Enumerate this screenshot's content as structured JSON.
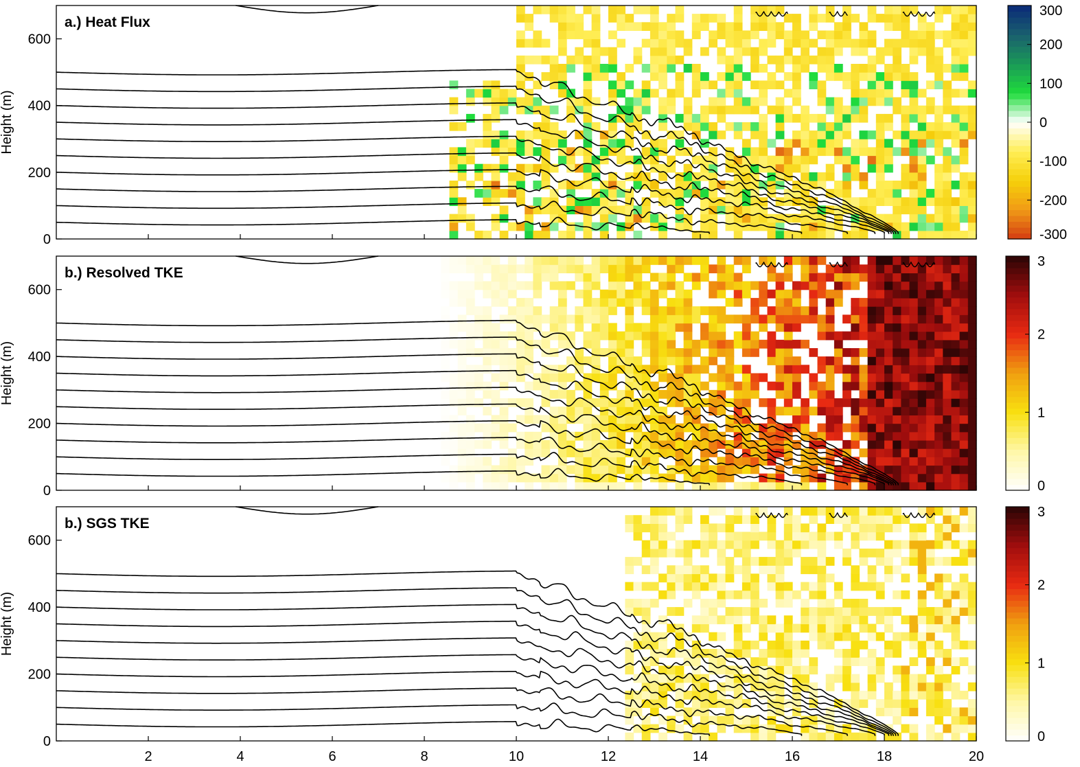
{
  "chart_data": [
    {
      "type": "heatmap",
      "title": "a.) Heat Flux",
      "ylabel": "Height (m)",
      "xlabel": "",
      "xlim": [
        0,
        20
      ],
      "ylim": [
        0,
        700
      ],
      "xticks": [
        "2",
        "4",
        "6",
        "8",
        "10",
        "12",
        "14",
        "16",
        "18",
        "20"
      ],
      "yticks": [
        "0",
        "200",
        "400",
        "600"
      ],
      "colorbar": {
        "min": -300,
        "max": 300,
        "ticks": [
          "300",
          "200",
          "100",
          "0",
          "-100",
          "-200",
          "-300"
        ],
        "colors": [
          "#d43c12",
          "#f09a16",
          "#f5d00a",
          "#ffee55",
          "#ffffff",
          "#1fdc3c",
          "#1a9a57",
          "#1a5f6e",
          "#0a2a78"
        ]
      },
      "grid": false,
      "legend": "none"
    },
    {
      "type": "heatmap",
      "title": "b.) Resolved TKE",
      "ylabel": "Height (m)",
      "xlabel": "",
      "xlim": [
        0,
        20
      ],
      "ylim": [
        0,
        700
      ],
      "xticks": [
        "2",
        "4",
        "6",
        "8",
        "10",
        "12",
        "14",
        "16",
        "18",
        "20"
      ],
      "yticks": [
        "0",
        "200",
        "400",
        "600"
      ],
      "colorbar": {
        "min": 0,
        "max": 3,
        "ticks": [
          "3",
          "2",
          "1",
          "0"
        ],
        "colors": [
          "#ffffff",
          "#fff7a8",
          "#f8e010",
          "#f0a010",
          "#e82a12",
          "#a00d0d",
          "#2a0505"
        ]
      },
      "grid": false,
      "legend": "none"
    },
    {
      "type": "heatmap",
      "title": "b.) SGS TKE",
      "ylabel": "Height (m)",
      "xlabel": "",
      "xlim": [
        0,
        20
      ],
      "ylim": [
        0,
        700
      ],
      "xticks": [
        "2",
        "4",
        "6",
        "8",
        "10",
        "12",
        "14",
        "16",
        "18",
        "20"
      ],
      "yticks": [
        "0",
        "200",
        "400",
        "600"
      ],
      "colorbar": {
        "min": 0,
        "max": 3,
        "ticks": [
          "3",
          "2",
          "1",
          "0"
        ],
        "colors": [
          "#ffffff",
          "#fff7a8",
          "#f8e010",
          "#f0a010",
          "#e82a12",
          "#a00d0d",
          "#2a0505"
        ]
      },
      "grid": false,
      "legend": "none"
    }
  ]
}
